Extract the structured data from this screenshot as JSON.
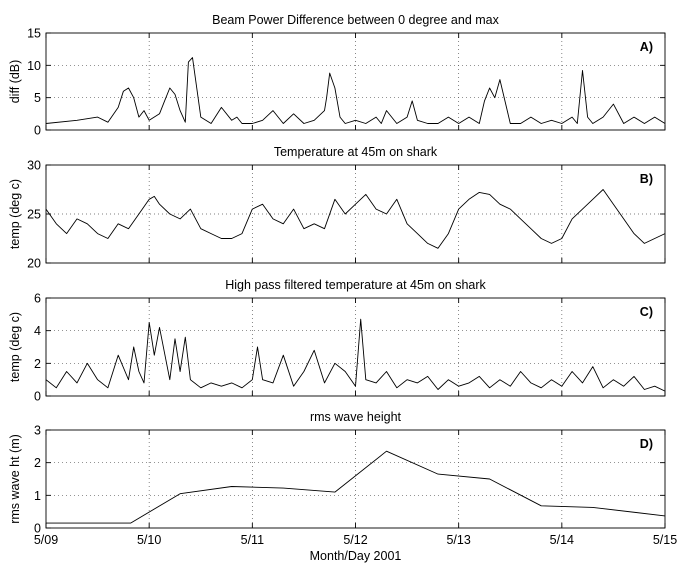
{
  "chart_data": [
    {
      "id": "A",
      "type": "line",
      "title": "Beam Power Difference between 0 degree and max",
      "ylabel": "diff (dB)",
      "panel_label": "A)",
      "xlim": [
        9,
        15
      ],
      "ylim": [
        0,
        15
      ],
      "yticks": [
        0,
        5,
        10,
        15
      ],
      "grid": true,
      "series": [
        {
          "x": [
            9.0,
            9.3,
            9.5,
            9.6,
            9.7,
            9.75,
            9.8,
            9.85,
            9.9,
            9.95,
            10.0,
            10.1,
            10.15,
            10.2,
            10.25,
            10.3,
            10.35,
            10.38,
            10.42,
            10.5,
            10.6,
            10.7,
            10.8,
            10.85,
            10.9,
            11.0,
            11.1,
            11.2,
            11.3,
            11.4,
            11.5,
            11.6,
            11.7,
            11.72,
            11.75,
            11.8,
            11.85,
            11.9,
            12.0,
            12.1,
            12.2,
            12.25,
            12.3,
            12.4,
            12.5,
            12.55,
            12.6,
            12.7,
            12.8,
            12.9,
            13.0,
            13.1,
            13.2,
            13.25,
            13.3,
            13.35,
            13.4,
            13.5,
            13.6,
            13.7,
            13.8,
            13.9,
            14.0,
            14.1,
            14.15,
            14.2,
            14.25,
            14.3,
            14.4,
            14.5,
            14.6,
            14.7,
            14.8,
            14.9,
            15.0
          ],
          "y": [
            1.0,
            1.5,
            2.0,
            1.2,
            3.5,
            6.0,
            6.5,
            5.0,
            2.0,
            3.0,
            1.5,
            2.5,
            4.5,
            6.5,
            5.5,
            3.0,
            1.2,
            10.5,
            11.2,
            2.0,
            1.0,
            3.5,
            1.5,
            2.0,
            1.0,
            1.0,
            1.5,
            3.0,
            1.0,
            2.5,
            1.0,
            1.5,
            3.0,
            5.0,
            8.8,
            6.5,
            2.0,
            1.0,
            1.5,
            1.0,
            2.0,
            1.0,
            3.0,
            1.0,
            2.0,
            4.5,
            1.5,
            1.0,
            1.0,
            2.0,
            1.0,
            2.0,
            1.0,
            4.5,
            6.5,
            5.0,
            7.8,
            1.0,
            1.0,
            2.0,
            1.0,
            1.5,
            1.0,
            2.0,
            1.0,
            9.2,
            2.0,
            1.0,
            2.0,
            4.0,
            1.0,
            2.0,
            1.0,
            2.0,
            1.0
          ]
        }
      ]
    },
    {
      "id": "B",
      "type": "line",
      "title": "Temperature at 45m on shark",
      "ylabel": "temp (deg c)",
      "panel_label": "B)",
      "xlim": [
        9,
        15
      ],
      "ylim": [
        20,
        30
      ],
      "yticks": [
        20,
        25,
        30
      ],
      "grid": true,
      "series": [
        {
          "x": [
            9.0,
            9.1,
            9.2,
            9.3,
            9.4,
            9.5,
            9.6,
            9.7,
            9.8,
            9.9,
            10.0,
            10.05,
            10.1,
            10.2,
            10.3,
            10.4,
            10.5,
            10.6,
            10.7,
            10.8,
            10.9,
            11.0,
            11.1,
            11.2,
            11.3,
            11.4,
            11.5,
            11.6,
            11.7,
            11.8,
            11.9,
            12.0,
            12.1,
            12.2,
            12.3,
            12.4,
            12.5,
            12.6,
            12.7,
            12.8,
            12.9,
            13.0,
            13.1,
            13.2,
            13.3,
            13.4,
            13.5,
            13.6,
            13.7,
            13.8,
            13.9,
            14.0,
            14.1,
            14.2,
            14.3,
            14.4,
            14.5,
            14.6,
            14.7,
            14.8,
            14.9,
            15.0
          ],
          "y": [
            25.5,
            24.0,
            23.0,
            24.5,
            24.0,
            23.0,
            22.5,
            24.0,
            23.5,
            25.0,
            26.5,
            26.8,
            26.0,
            25.0,
            24.5,
            25.5,
            23.5,
            23.0,
            22.5,
            22.5,
            23.0,
            25.5,
            26.0,
            24.5,
            24.0,
            25.5,
            23.5,
            24.0,
            23.5,
            26.5,
            25.0,
            26.0,
            27.0,
            25.5,
            25.0,
            26.5,
            24.0,
            23.0,
            22.0,
            21.5,
            23.0,
            25.5,
            26.5,
            27.2,
            27.0,
            26.0,
            25.5,
            24.5,
            23.5,
            22.5,
            22.0,
            22.5,
            24.5,
            25.5,
            26.5,
            27.5,
            26.0,
            24.5,
            23.0,
            22.0,
            22.5,
            23.0
          ]
        }
      ]
    },
    {
      "id": "C",
      "type": "line",
      "title": "High pass filtered temperature at 45m on shark",
      "ylabel": "temp (deg c)",
      "panel_label": "C)",
      "xlim": [
        9,
        15
      ],
      "ylim": [
        0,
        6
      ],
      "yticks": [
        0,
        2,
        4,
        6
      ],
      "grid": true,
      "series": [
        {
          "x": [
            9.0,
            9.1,
            9.2,
            9.3,
            9.4,
            9.5,
            9.6,
            9.7,
            9.8,
            9.85,
            9.9,
            9.95,
            10.0,
            10.05,
            10.1,
            10.2,
            10.25,
            10.3,
            10.35,
            10.4,
            10.5,
            10.6,
            10.7,
            10.8,
            10.9,
            11.0,
            11.05,
            11.1,
            11.2,
            11.3,
            11.4,
            11.5,
            11.6,
            11.7,
            11.8,
            11.9,
            12.0,
            12.05,
            12.1,
            12.2,
            12.3,
            12.4,
            12.5,
            12.6,
            12.7,
            12.8,
            12.9,
            13.0,
            13.1,
            13.2,
            13.3,
            13.4,
            13.5,
            13.6,
            13.7,
            13.8,
            13.9,
            14.0,
            14.1,
            14.2,
            14.3,
            14.4,
            14.5,
            14.6,
            14.7,
            14.8,
            14.9,
            15.0
          ],
          "y": [
            1.0,
            0.5,
            1.5,
            0.8,
            2.0,
            1.0,
            0.5,
            2.5,
            1.0,
            3.0,
            1.5,
            0.8,
            4.5,
            2.5,
            4.2,
            1.0,
            3.5,
            1.5,
            3.6,
            1.0,
            0.5,
            0.8,
            0.6,
            0.8,
            0.5,
            1.0,
            3.0,
            1.0,
            0.8,
            2.5,
            0.6,
            1.5,
            2.8,
            0.8,
            2.0,
            1.5,
            0.6,
            4.7,
            1.0,
            0.8,
            1.5,
            0.5,
            1.0,
            0.8,
            1.2,
            0.4,
            1.0,
            0.6,
            0.8,
            1.2,
            0.5,
            1.0,
            0.6,
            1.5,
            0.8,
            0.5,
            1.0,
            0.6,
            1.5,
            0.8,
            1.8,
            0.5,
            1.0,
            0.6,
            1.2,
            0.4,
            0.6,
            0.3
          ]
        }
      ]
    },
    {
      "id": "D",
      "type": "line",
      "title": "rms wave height",
      "ylabel": "rms wave ht (m)",
      "panel_label": "D)",
      "xlabel": "Month/Day 2001",
      "xlim": [
        9,
        15
      ],
      "ylim": [
        0,
        3
      ],
      "yticks": [
        0,
        1,
        2,
        3
      ],
      "grid": true,
      "series": [
        {
          "x": [
            9.0,
            9.82,
            10.3,
            10.8,
            11.3,
            11.8,
            12.3,
            12.8,
            13.3,
            13.8,
            14.3,
            15.0
          ],
          "y": [
            0.15,
            0.15,
            1.05,
            1.27,
            1.22,
            1.1,
            2.35,
            1.65,
            1.5,
            0.68,
            0.63,
            0.37
          ]
        }
      ]
    }
  ],
  "x_axis": {
    "ticks": [
      9,
      10,
      11,
      12,
      13,
      14,
      15
    ],
    "tick_labels": [
      "5/09",
      "5/10",
      "5/11",
      "5/12",
      "5/13",
      "5/14",
      "5/15"
    ],
    "label": "Month/Day 2001"
  }
}
